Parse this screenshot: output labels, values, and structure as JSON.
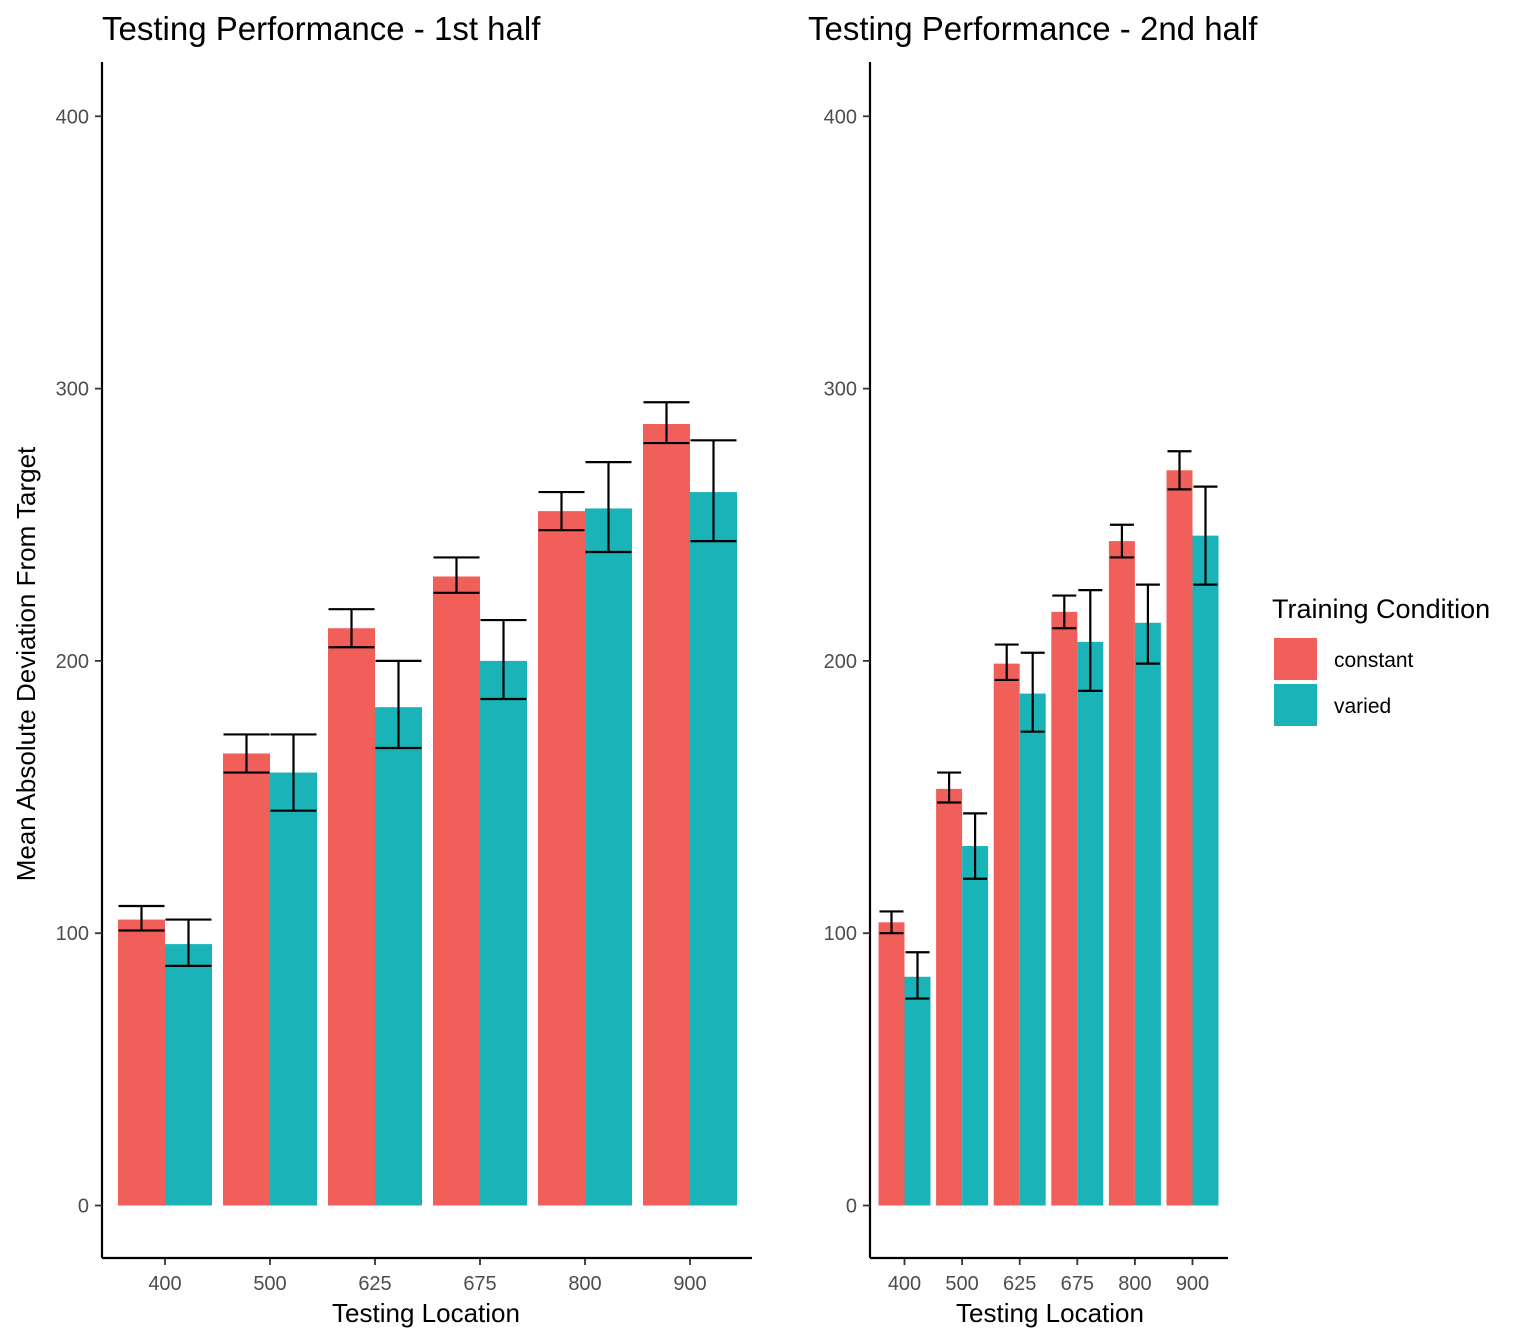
{
  "chart_data": [
    {
      "type": "bar",
      "title": "Testing Performance - 1st half",
      "xlabel": "Testing Location",
      "ylabel": "Mean Absolute Deviation From Target",
      "categories": [
        "400",
        "500",
        "625",
        "675",
        "800",
        "900"
      ],
      "ylim": [
        -20,
        420
      ],
      "yticks": [
        "0",
        "100",
        "200",
        "300",
        "400"
      ],
      "grid": false,
      "series": [
        {
          "name": "constant",
          "values": [
            105,
            166,
            212,
            231,
            255,
            287
          ],
          "error_low": [
            101,
            159,
            205,
            225,
            248,
            280
          ],
          "error_high": [
            110,
            173,
            219,
            238,
            262,
            295
          ]
        },
        {
          "name": "varied",
          "values": [
            96,
            159,
            183,
            200,
            256,
            262
          ],
          "error_low": [
            88,
            145,
            168,
            186,
            240,
            244
          ],
          "error_high": [
            105,
            173,
            200,
            215,
            273,
            281
          ]
        }
      ]
    },
    {
      "type": "bar",
      "title": "Testing Performance - 2nd half",
      "xlabel": "Testing Location",
      "ylabel": "",
      "categories": [
        "400",
        "500",
        "625",
        "675",
        "800",
        "900"
      ],
      "ylim": [
        -20,
        420
      ],
      "yticks": [
        "0",
        "100",
        "200",
        "300",
        "400"
      ],
      "grid": false,
      "series": [
        {
          "name": "constant",
          "values": [
            104,
            153,
            199,
            218,
            244,
            270
          ],
          "error_low": [
            100,
            148,
            193,
            212,
            238,
            263
          ],
          "error_high": [
            108,
            159,
            206,
            224,
            250,
            277
          ]
        },
        {
          "name": "varied",
          "values": [
            84,
            132,
            188,
            207,
            214,
            246
          ],
          "error_low": [
            76,
            120,
            174,
            189,
            199,
            228
          ],
          "error_high": [
            93,
            144,
            203,
            226,
            228,
            264
          ]
        }
      ]
    }
  ],
  "legend": {
    "title": "Training Condition",
    "placement": "right",
    "items": [
      {
        "label": "constant",
        "color": "#F8766D"
      },
      {
        "label": "varied",
        "color": "#00BFC4"
      }
    ]
  },
  "colors": {
    "constant": "#F15F5A",
    "varied": "#19B3B8",
    "axis": "#000000",
    "errorbar": "#000000"
  }
}
